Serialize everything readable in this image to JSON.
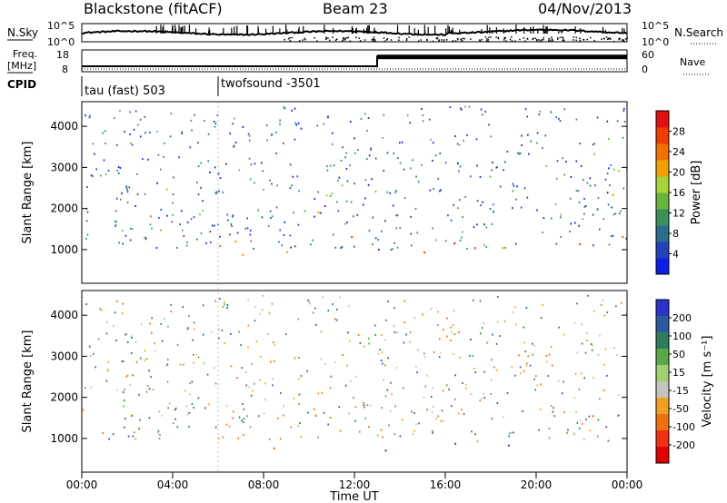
{
  "header": {
    "station": "Blackstone (fitACF)",
    "beam": "Beam 23",
    "date": "04/Nov/2013"
  },
  "summary": {
    "nsky_label": "N.Sky",
    "nsearch_label": "N.Search",
    "freq_label_line1": "Freq.",
    "freq_label_line2": "[MHz]",
    "nave_label": "Nave",
    "cpid_label": "CPID",
    "noise_ticks": [
      "10^5",
      "10^0"
    ],
    "freq_ticks": [
      "18",
      "8"
    ],
    "nave_ticks": [
      "60",
      "0"
    ],
    "cpid_segments": [
      {
        "label": "tau (fast) 503",
        "start_hour": 0,
        "end_hour": 6
      },
      {
        "label": "twofsound -3501",
        "start_hour": 6,
        "end_hour": 24
      }
    ],
    "frequency_steps": [
      {
        "start_hour": 0,
        "end_hour": 13,
        "value_mhz": 10.5
      },
      {
        "start_hour": 13,
        "end_hour": 24,
        "value_mhz": 15
      }
    ]
  },
  "chart_data": [
    {
      "type": "heatmap",
      "name": "power",
      "ylabel": "Slant Range [km]",
      "xlabel": "Time UT",
      "xlim": [
        0,
        24
      ],
      "ylim": [
        180,
        4600
      ],
      "y_ticks": [
        1000,
        2000,
        3000,
        4000
      ],
      "x_ticks": [
        "00:00",
        "04:00",
        "08:00",
        "12:00",
        "16:00",
        "20:00",
        "00:00"
      ],
      "colorbar": {
        "label": "Power [dB]",
        "ticks": [
          4,
          8,
          12,
          16,
          20,
          24,
          28
        ],
        "range": [
          0,
          32
        ],
        "colors": [
          "#0a1ee8",
          "#2243b5",
          "#2a6e8c",
          "#3c8f5a",
          "#66b53a",
          "#a6d43a",
          "#f0a000",
          "#f26f00",
          "#f03c00",
          "#e01010"
        ]
      },
      "bands": [
        {
          "t0": 0.0,
          "t1": 1.2,
          "r0": 950,
          "r1": 1250,
          "value": 24
        },
        {
          "t0": 0.8,
          "t1": 3.0,
          "r0": 1250,
          "r1": 1900,
          "value": 16
        },
        {
          "t0": 1.5,
          "t1": 3.5,
          "r0": 1700,
          "r1": 2100,
          "value": 24
        },
        {
          "t0": 3.0,
          "t1": 4.0,
          "r0": 2100,
          "r1": 2600,
          "value": 18
        },
        {
          "t0": 5.0,
          "t1": 9.5,
          "r0": 800,
          "r1": 1300,
          "value": 22
        },
        {
          "t0": 6.0,
          "t1": 8.5,
          "r0": 850,
          "r1": 1150,
          "value": 28
        },
        {
          "t0": 9.0,
          "t1": 11.5,
          "r0": 1700,
          "r1": 2800,
          "value": 18
        },
        {
          "t0": 11.5,
          "t1": 13.0,
          "r0": 800,
          "r1": 1400,
          "value": 24
        },
        {
          "t0": 13.0,
          "t1": 23.6,
          "r0": 850,
          "r1": 1250,
          "value": 26
        },
        {
          "t0": 13.0,
          "t1": 23.0,
          "r0": 1500,
          "r1": 2100,
          "value": 10
        },
        {
          "t0": 23.0,
          "t1": 24.0,
          "r0": 1200,
          "r1": 2500,
          "value": 20
        }
      ]
    },
    {
      "type": "heatmap",
      "name": "velocity",
      "ylabel": "Slant Range [km]",
      "xlabel": "Time UT",
      "xlim": [
        0,
        24
      ],
      "ylim": [
        180,
        4600
      ],
      "y_ticks": [
        1000,
        2000,
        3000,
        4000
      ],
      "x_ticks": [
        "00:00",
        "04:00",
        "08:00",
        "12:00",
        "16:00",
        "20:00",
        "00:00"
      ],
      "colorbar": {
        "label": "Velocity [m s⁻¹]",
        "ticks": [
          200,
          100,
          50,
          15,
          -15,
          -50,
          -100,
          -200
        ],
        "colors": [
          "#2a33c8",
          "#2c5aa0",
          "#2e7d5e",
          "#58a84a",
          "#a0d070",
          "#c4c4bc",
          "#f0a020",
          "#f07010",
          "#f03010",
          "#e00000"
        ]
      },
      "bands": [
        {
          "t0": 0.0,
          "t1": 4.0,
          "r0": 1000,
          "r1": 1300,
          "value": 0
        },
        {
          "t0": 0.8,
          "t1": 4.0,
          "r0": 1900,
          "r1": 2200,
          "value": 0
        },
        {
          "t0": 2.5,
          "t1": 4.5,
          "r0": 2200,
          "r1": 2700,
          "value": 0
        },
        {
          "t0": 6.0,
          "t1": 8.2,
          "r0": 950,
          "r1": 1350,
          "value": -60
        },
        {
          "t0": 6.5,
          "t1": 9.5,
          "r0": 750,
          "r1": 950,
          "value": -150
        },
        {
          "t0": 7.0,
          "t1": 10.5,
          "r0": 1450,
          "r1": 1650,
          "value": -150
        },
        {
          "t0": 9.0,
          "t1": 11.5,
          "r0": 1700,
          "r1": 2800,
          "value": 0
        },
        {
          "t0": 11.5,
          "t1": 13.0,
          "r0": 850,
          "r1": 1500,
          "value": 0
        },
        {
          "t0": 13.0,
          "t1": 23.6,
          "r0": 950,
          "r1": 1250,
          "value": 0
        },
        {
          "t0": 13.0,
          "t1": 23.0,
          "r0": 1550,
          "r1": 1800,
          "value": -120
        },
        {
          "t0": 13.0,
          "t1": 23.0,
          "r0": 700,
          "r1": 900,
          "value": 120
        }
      ]
    }
  ]
}
